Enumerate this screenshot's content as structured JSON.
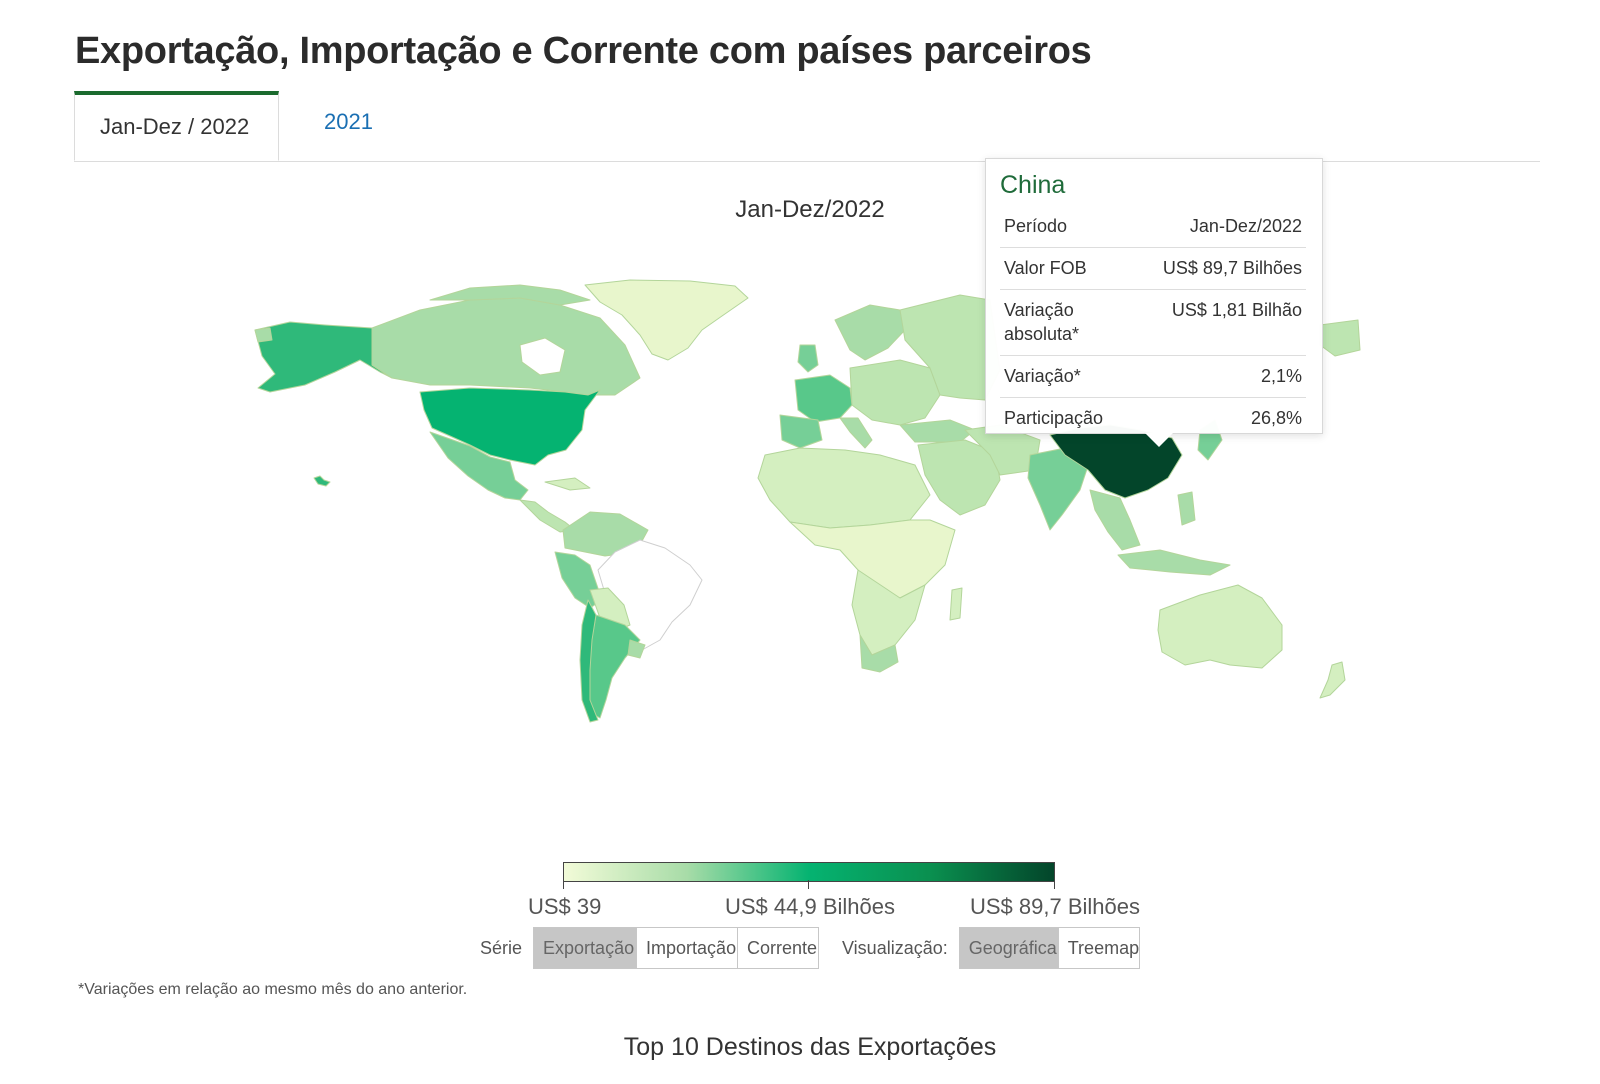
{
  "page": {
    "title": "Exportação, Importação e Corrente com países parceiros",
    "footnote": "*Variações em relação ao mesmo mês do ano anterior.",
    "section_title": "Top 10 Destinos das Exportações"
  },
  "tabs": [
    {
      "label": "Jan-Dez / 2022",
      "active": true
    },
    {
      "label": "2021",
      "active": false
    }
  ],
  "map": {
    "title": "Jan-Dez/2022",
    "colors": {
      "very_light": "#eef9d4",
      "light": "#d4efc0",
      "light_mid": "#a8dca8",
      "mid": "#58c88a",
      "strong": "#05b371",
      "darkest": "#03452a",
      "no_data": "#ffffff",
      "border": "#b3d59a"
    }
  },
  "tooltip": {
    "country": "China",
    "rows": [
      {
        "label": "Período",
        "value": "Jan-Dez/2022"
      },
      {
        "label": "Valor FOB",
        "value": "US$ 89,7 Bilhões"
      },
      {
        "label": "Variação absoluta*",
        "value": "US$ 1,81 Bilhão"
      },
      {
        "label": "Variação*",
        "value": "2,1%"
      },
      {
        "label": "Participação",
        "value": "26,8%"
      }
    ]
  },
  "legend": {
    "min_label": "US$ 39",
    "mid_label": "US$ 44,9 Bilhões",
    "max_label": "US$ 89,7 Bilhões"
  },
  "controls": {
    "serie_label": "Série",
    "serie_options": [
      "Exportação",
      "Importação",
      "Corrente"
    ],
    "serie_selected": "Exportação",
    "view_label": "Visualização:",
    "view_options": [
      "Geográfica",
      "Treemap"
    ],
    "view_selected": "Geográfica"
  }
}
